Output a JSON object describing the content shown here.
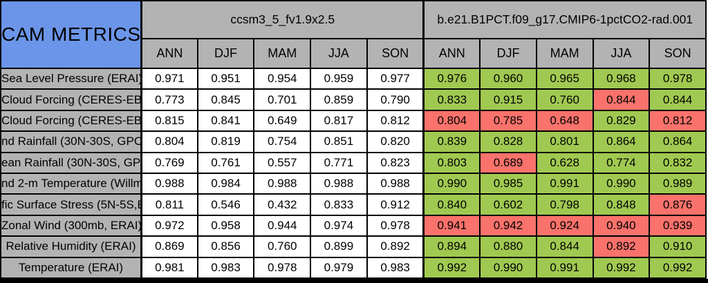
{
  "colors": {
    "corner_bg": "#6b95e8",
    "header_bg": "#b3b3b3",
    "green": "#a0c951",
    "red": "#f9726b",
    "cell_white": "#ffffff",
    "border": "#000000"
  },
  "chart_data": {
    "type": "table",
    "title": "CAM METRICS",
    "column_groups": [
      {
        "label": "ccsm3_5_fv1.9x2.5",
        "columns": [
          "ANN",
          "DJF",
          "MAM",
          "JJA",
          "SON"
        ]
      },
      {
        "label": "b.e21.B1PCT.f09_g17.CMIP6-1pctCO2-rad.001",
        "columns": [
          "ANN",
          "DJF",
          "MAM",
          "JJA",
          "SON"
        ]
      }
    ],
    "rows": [
      {
        "label": "Sea Level Pressure (ERAI)",
        "values": [
          "0.971",
          "0.951",
          "0.954",
          "0.959",
          "0.977",
          "0.976",
          "0.960",
          "0.965",
          "0.968",
          "0.978"
        ],
        "cell_colors": [
          "white",
          "white",
          "white",
          "white",
          "white",
          "green",
          "green",
          "green",
          "green",
          "green"
        ]
      },
      {
        "label": "Cloud Forcing (CERES-EB",
        "values": [
          "0.773",
          "0.845",
          "0.701",
          "0.859",
          "0.790",
          "0.833",
          "0.915",
          "0.760",
          "0.844",
          "0.844"
        ],
        "cell_colors": [
          "white",
          "white",
          "white",
          "white",
          "white",
          "green",
          "green",
          "green",
          "red",
          "green"
        ]
      },
      {
        "label": "Cloud Forcing (CERES-EB",
        "values": [
          "0.815",
          "0.841",
          "0.649",
          "0.817",
          "0.812",
          "0.804",
          "0.785",
          "0.648",
          "0.829",
          "0.812"
        ],
        "cell_colors": [
          "white",
          "white",
          "white",
          "white",
          "white",
          "red",
          "red",
          "red",
          "green",
          "red"
        ]
      },
      {
        "label": "nd Rainfall (30N-30S, GPC",
        "values": [
          "0.804",
          "0.819",
          "0.754",
          "0.851",
          "0.820",
          "0.839",
          "0.828",
          "0.801",
          "0.864",
          "0.864"
        ],
        "cell_colors": [
          "white",
          "white",
          "white",
          "white",
          "white",
          "green",
          "green",
          "green",
          "green",
          "green"
        ]
      },
      {
        "label": "ean Rainfall (30N-30S, GPC",
        "values": [
          "0.769",
          "0.761",
          "0.557",
          "0.771",
          "0.823",
          "0.803",
          "0.689",
          "0.628",
          "0.774",
          "0.832"
        ],
        "cell_colors": [
          "white",
          "white",
          "white",
          "white",
          "white",
          "green",
          "red",
          "green",
          "green",
          "green"
        ]
      },
      {
        "label": "nd 2-m Temperature (Willmo",
        "values": [
          "0.988",
          "0.984",
          "0.988",
          "0.988",
          "0.988",
          "0.990",
          "0.985",
          "0.991",
          "0.990",
          "0.989"
        ],
        "cell_colors": [
          "white",
          "white",
          "white",
          "white",
          "white",
          "green",
          "green",
          "green",
          "green",
          "green"
        ]
      },
      {
        "label": "fic Surface Stress (5N-5S,E",
        "values": [
          "0.811",
          "0.546",
          "0.432",
          "0.833",
          "0.912",
          "0.840",
          "0.602",
          "0.798",
          "0.848",
          "0.876"
        ],
        "cell_colors": [
          "white",
          "white",
          "white",
          "white",
          "white",
          "green",
          "green",
          "green",
          "green",
          "red"
        ]
      },
      {
        "label": "Zonal Wind (300mb, ERAI)",
        "values": [
          "0.972",
          "0.958",
          "0.944",
          "0.974",
          "0.978",
          "0.941",
          "0.942",
          "0.924",
          "0.940",
          "0.939"
        ],
        "cell_colors": [
          "white",
          "white",
          "white",
          "white",
          "white",
          "red",
          "red",
          "red",
          "red",
          "red"
        ]
      },
      {
        "label": "Relative Humidity (ERAI)",
        "values": [
          "0.869",
          "0.856",
          "0.760",
          "0.899",
          "0.892",
          "0.894",
          "0.880",
          "0.844",
          "0.892",
          "0.910"
        ],
        "cell_colors": [
          "white",
          "white",
          "white",
          "white",
          "white",
          "green",
          "green",
          "green",
          "red",
          "green"
        ]
      },
      {
        "label": "Temperature (ERAI)",
        "values": [
          "0.981",
          "0.983",
          "0.978",
          "0.979",
          "0.983",
          "0.992",
          "0.990",
          "0.991",
          "0.992",
          "0.992"
        ],
        "cell_colors": [
          "white",
          "white",
          "white",
          "white",
          "white",
          "green",
          "green",
          "green",
          "green",
          "green"
        ]
      }
    ]
  }
}
